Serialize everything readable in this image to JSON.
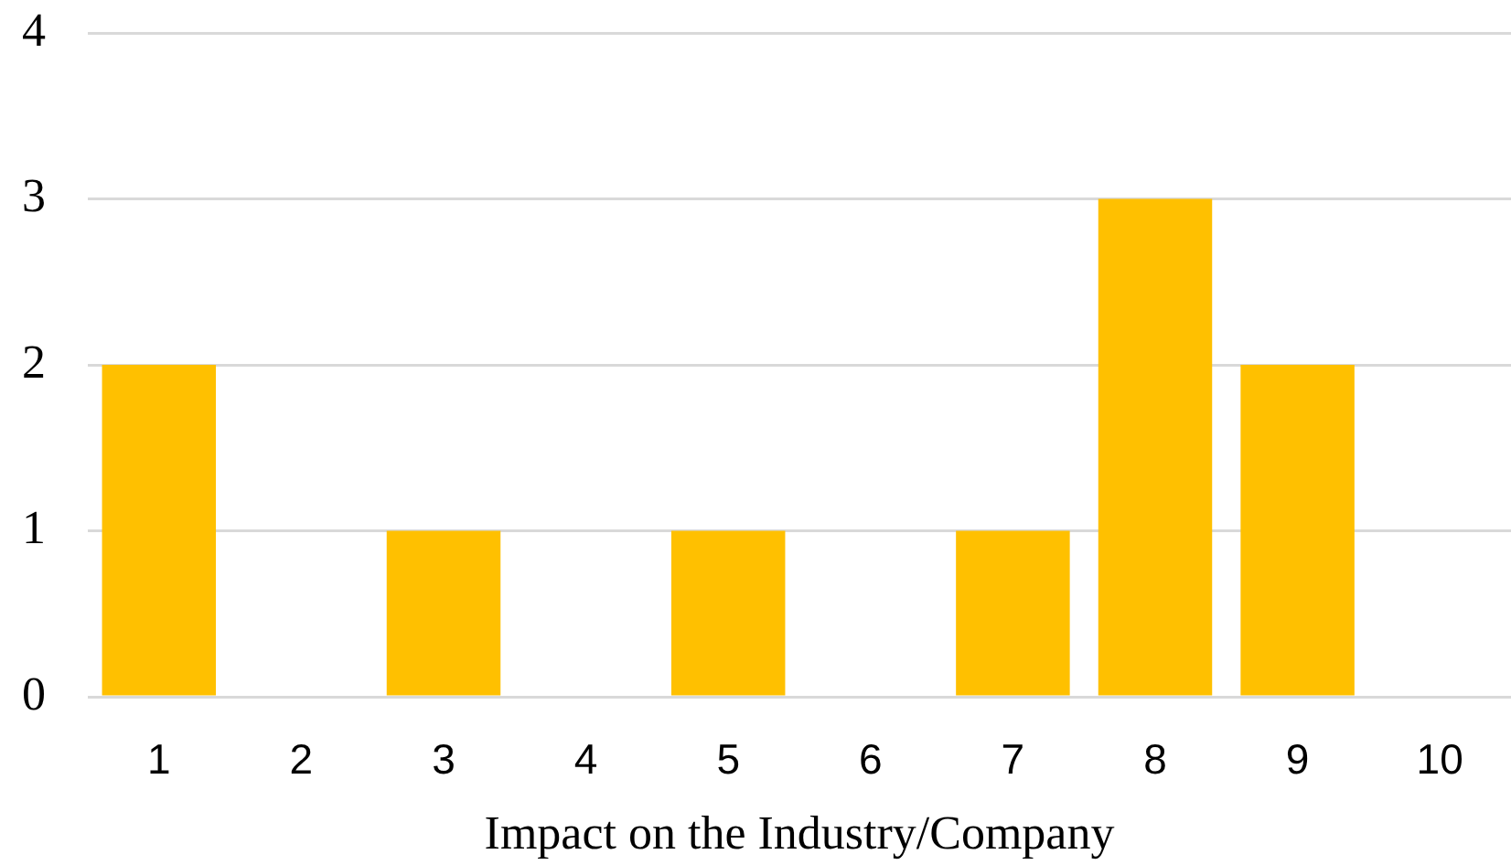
{
  "chart_data": {
    "type": "bar",
    "xlabel": "Impact on the Industry/Company",
    "categories": [
      "1",
      "2",
      "3",
      "4",
      "5",
      "6",
      "7",
      "8",
      "9",
      "10"
    ],
    "values": [
      2,
      0,
      1,
      0,
      1,
      0,
      1,
      3,
      2,
      0
    ],
    "color": "#ffc000",
    "ylim": [
      0,
      4
    ],
    "yticks": [
      0,
      1,
      2,
      3,
      4
    ],
    "grid": "y"
  }
}
